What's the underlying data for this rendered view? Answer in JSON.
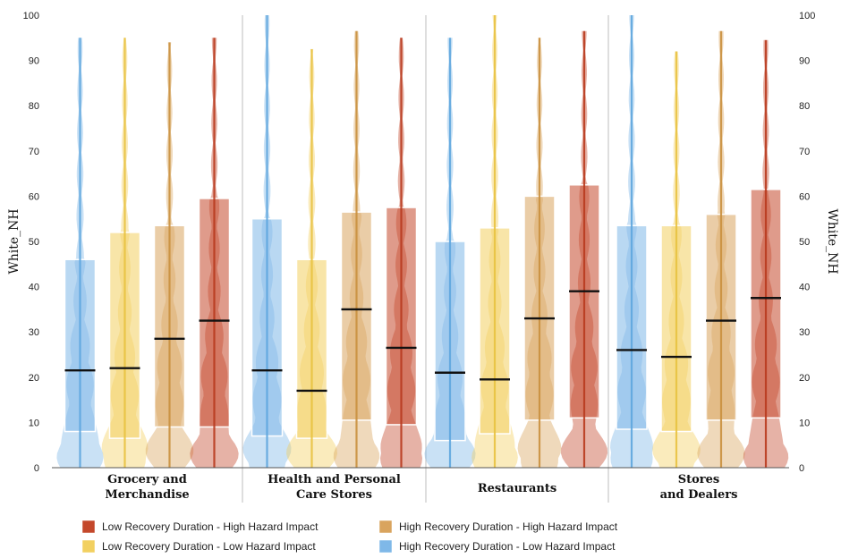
{
  "chart_data": {
    "type": "box-violin",
    "title": "",
    "ylabel_left": "White_NH",
    "ylabel_right": "White_NH",
    "ylim": [
      0,
      100
    ],
    "yticks": [
      0,
      10,
      20,
      30,
      40,
      50,
      60,
      70,
      80,
      90,
      100
    ],
    "grid": false,
    "legend_position": "bottom",
    "categories": [
      [
        "Grocery and",
        "Merchandise"
      ],
      [
        "Health and Personal",
        "Care Stores"
      ],
      [
        "Restaurants"
      ],
      [
        "Stores",
        "and Dealers"
      ]
    ],
    "series": [
      {
        "name": "High Recovery Duration - Low Hazard Impact",
        "color": "#7fb8e8",
        "line_color": "#5ea6de",
        "legend_label": "High Recovery Duration - Low Hazard Impact",
        "q1": [
          8,
          7,
          6,
          8.5
        ],
        "q3": [
          46,
          55,
          50,
          53.5
        ],
        "median": [
          21.5,
          21.5,
          21,
          26
        ],
        "min": [
          0,
          0,
          0,
          0
        ],
        "max": [
          95,
          100,
          95,
          100
        ]
      },
      {
        "name": "Low Recovery Duration - Low Hazard Impact",
        "color": "#f2d060",
        "line_color": "#e8c240",
        "legend_label": "Low Recovery Duration - Low Hazard Impact",
        "q1": [
          6.5,
          6.5,
          7.5,
          8
        ],
        "q3": [
          52,
          46,
          53,
          53.5
        ],
        "median": [
          22,
          17,
          19.5,
          24.5
        ],
        "min": [
          0,
          0,
          0,
          0
        ],
        "max": [
          95,
          92.5,
          100,
          92
        ]
      },
      {
        "name": "High Recovery Duration - High Hazard Impact",
        "color": "#d9a45e",
        "line_color": "#c98f3e",
        "legend_label": "High Recovery Duration - High Hazard Impact",
        "q1": [
          9,
          10.5,
          10.5,
          10.5
        ],
        "q3": [
          53.5,
          56.5,
          60,
          56
        ],
        "median": [
          28.5,
          35,
          33,
          32.5
        ],
        "min": [
          0,
          0,
          0,
          0
        ],
        "max": [
          94,
          96.5,
          95,
          96.5
        ]
      },
      {
        "name": "Low Recovery Duration - High Hazard Impact",
        "color": "#c4482b",
        "line_color": "#b83a1e",
        "legend_label": "Low Recovery Duration - High Hazard Impact",
        "q1": [
          9,
          9.5,
          11,
          11
        ],
        "q3": [
          59.5,
          57.5,
          62.5,
          61.5
        ],
        "median": [
          32.5,
          26.5,
          39,
          37.5
        ],
        "min": [
          0,
          0,
          0,
          0
        ],
        "max": [
          95,
          95,
          96.5,
          94.5
        ]
      }
    ]
  }
}
